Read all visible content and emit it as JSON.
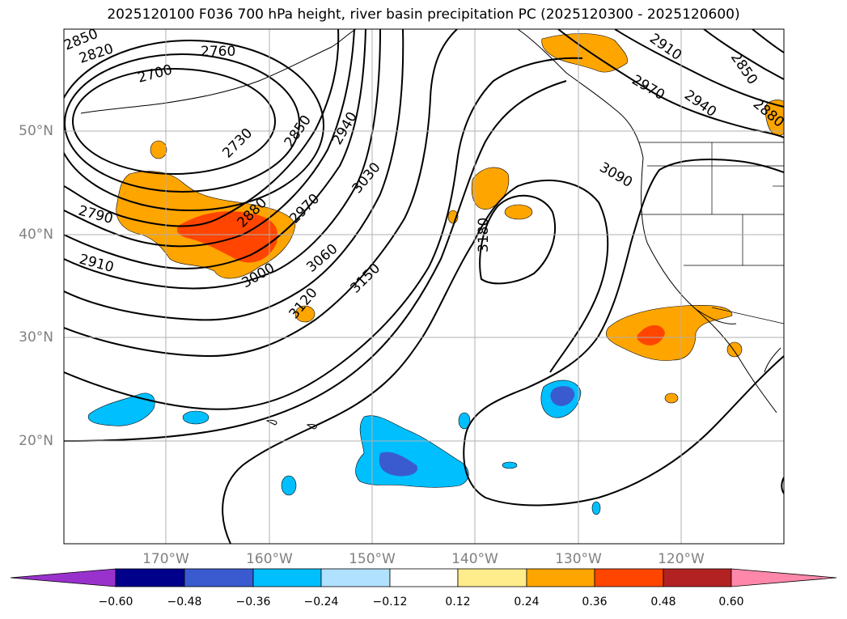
{
  "title": "2025120100 F036 700 hPa height, river basin precipitation PC (2025120300 - 2025120600)",
  "lat_labels": [
    "50°N",
    "40°N",
    "30°N",
    "20°N"
  ],
  "lon_labels": [
    "170°W",
    "160°W",
    "150°W",
    "140°W",
    "130°W",
    "120°W"
  ],
  "contour_labels": [
    "2850",
    "2820",
    "2760",
    "2700",
    "2730",
    "2850",
    "2940",
    "2790",
    "2880",
    "2970",
    "3030",
    "2910",
    "3000",
    "3060",
    "3150",
    "3120",
    "3180",
    "3090",
    "2910",
    "2850",
    "2970",
    "2940",
    "2880"
  ],
  "colorbar": {
    "tick_labels": [
      "−0.60",
      "−0.48",
      "−0.36",
      "−0.24",
      "−0.12",
      "0.12",
      "0.24",
      "0.36",
      "0.48",
      "0.60"
    ],
    "colors": [
      "#9932cc",
      "#00008b",
      "#3a5bcf",
      "#00bfff",
      "#b0e2ff",
      "#ffffff",
      "#ffec8b",
      "#ffa500",
      "#ff4500",
      "#b22222",
      "#ff88aa"
    ]
  },
  "colors": {
    "orange": "#ffa500",
    "red": "#ff4500",
    "sky": "#00bfff",
    "blue": "#3a5bcf",
    "grid": "#b0b0b0"
  }
}
